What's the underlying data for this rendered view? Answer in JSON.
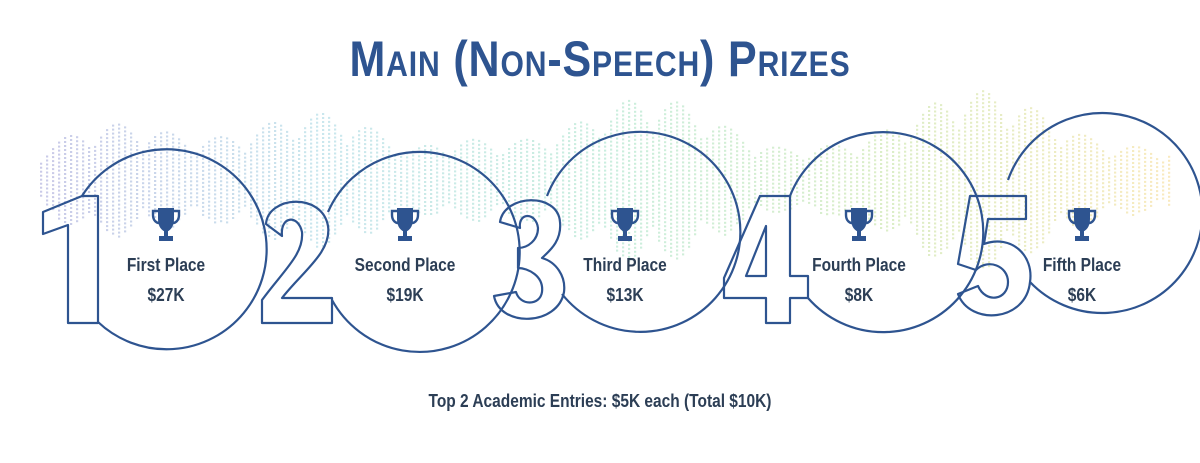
{
  "title": "Main (Non-Speech) Prizes",
  "colors": {
    "outline": "#2e5490",
    "text": "#2c3e55",
    "wave": [
      "#9f9fd6",
      "#9fd4e0",
      "#9fe0c4",
      "#bfe09a",
      "#f4d98a"
    ]
  },
  "prizes": [
    {
      "numeral": "1",
      "name": "First Place",
      "amount": "$27K"
    },
    {
      "numeral": "2",
      "name": "Second Place",
      "amount": "$19K"
    },
    {
      "numeral": "3",
      "name": "Third Place",
      "amount": "$13K"
    },
    {
      "numeral": "4",
      "name": "Fourth Place",
      "amount": "$8K"
    },
    {
      "numeral": "5",
      "name": "Fifth Place",
      "amount": "$6K"
    }
  ],
  "footer": "Top 2 Academic Entries: $5K each (Total $10K)"
}
